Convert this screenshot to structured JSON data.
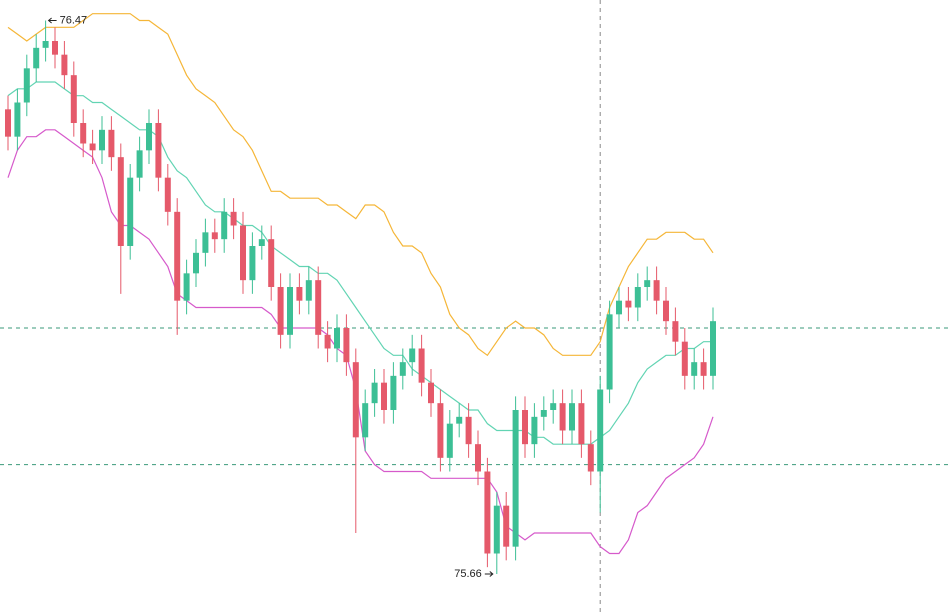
{
  "chart_data": {
    "type": "candlestick",
    "up_color": "#3cbf95",
    "down_color": "#e5596a",
    "ylim": [
      75.6,
      76.5
    ],
    "open": [
      76.34,
      76.3,
      76.35,
      76.4,
      76.43,
      76.44,
      76.42,
      76.39,
      76.32,
      76.29,
      76.28,
      76.31,
      76.27,
      76.14,
      76.24,
      76.28,
      76.32,
      76.24,
      76.19,
      76.06,
      76.1,
      76.13,
      76.16,
      76.15,
      76.19,
      76.17,
      76.09,
      76.14,
      76.15,
      76.08,
      76.01,
      76.08,
      76.06,
      76.09,
      76.01,
      75.99,
      76.02,
      75.97,
      75.86,
      75.91,
      75.94,
      75.9,
      75.95,
      75.97,
      75.99,
      75.94,
      75.91,
      75.83,
      75.88,
      75.89,
      75.85,
      75.81,
      75.69,
      75.76,
      75.7,
      75.9,
      75.85,
      75.89,
      75.9,
      75.91,
      75.87,
      75.91,
      75.85,
      75.81,
      75.93,
      76.04,
      76.06,
      76.05,
      76.08,
      76.09,
      76.06,
      76.03,
      76.0,
      75.95,
      75.97,
      75.95
    ],
    "high": [
      76.36,
      76.37,
      76.42,
      76.45,
      76.47,
      76.46,
      76.44,
      76.41,
      76.34,
      76.31,
      76.33,
      76.33,
      76.29,
      76.26,
      76.3,
      76.34,
      76.34,
      76.26,
      76.21,
      76.12,
      76.15,
      76.18,
      76.18,
      76.21,
      76.21,
      76.19,
      76.16,
      76.17,
      76.17,
      76.1,
      76.1,
      76.1,
      76.11,
      76.11,
      76.03,
      76.04,
      76.04,
      75.99,
      75.93,
      75.96,
      75.96,
      75.97,
      75.99,
      76.01,
      76.01,
      75.96,
      75.93,
      75.9,
      75.91,
      75.91,
      75.87,
      75.83,
      75.78,
      75.78,
      75.92,
      75.92,
      75.91,
      75.92,
      75.93,
      75.93,
      75.93,
      75.93,
      75.87,
      75.95,
      76.06,
      76.08,
      76.08,
      76.1,
      76.11,
      76.11,
      76.08,
      76.05,
      76.02,
      75.99,
      75.99,
      76.05
    ],
    "low": [
      76.28,
      76.28,
      76.33,
      76.38,
      76.41,
      76.4,
      76.37,
      76.3,
      76.27,
      76.26,
      76.26,
      76.25,
      76.07,
      76.12,
      76.22,
      76.26,
      76.22,
      76.17,
      76.01,
      76.04,
      76.08,
      76.11,
      76.13,
      76.13,
      76.15,
      76.07,
      76.07,
      76.12,
      76.06,
      75.99,
      75.99,
      76.04,
      76.04,
      75.99,
      75.97,
      75.97,
      75.95,
      75.72,
      75.84,
      75.89,
      75.88,
      75.88,
      75.93,
      75.95,
      75.92,
      75.89,
      75.81,
      75.81,
      75.86,
      75.83,
      75.79,
      75.67,
      75.66,
      75.68,
      75.68,
      75.83,
      75.83,
      75.87,
      75.88,
      75.85,
      75.85,
      75.83,
      75.79,
      75.75,
      75.91,
      76.02,
      76.03,
      76.03,
      76.06,
      76.04,
      76.01,
      75.98,
      75.93,
      75.93,
      75.93,
      75.93
    ],
    "close": [
      76.3,
      76.35,
      76.4,
      76.43,
      76.44,
      76.42,
      76.39,
      76.32,
      76.29,
      76.28,
      76.31,
      76.27,
      76.14,
      76.24,
      76.28,
      76.32,
      76.24,
      76.19,
      76.06,
      76.1,
      76.13,
      76.16,
      76.15,
      76.19,
      76.17,
      76.09,
      76.14,
      76.15,
      76.08,
      76.01,
      76.08,
      76.06,
      76.09,
      76.01,
      75.99,
      76.02,
      75.97,
      75.86,
      75.91,
      75.94,
      75.9,
      75.95,
      75.97,
      75.99,
      75.94,
      75.91,
      75.83,
      75.88,
      75.89,
      75.85,
      75.81,
      75.69,
      75.76,
      75.7,
      75.9,
      75.85,
      75.89,
      75.9,
      75.91,
      75.87,
      75.91,
      75.85,
      75.81,
      75.93,
      76.04,
      76.06,
      76.05,
      76.08,
      76.09,
      76.06,
      76.03,
      76.0,
      75.95,
      75.97,
      75.95,
      76.03
    ],
    "bands": [
      {
        "color": "#f5b638",
        "values": [
          76.46,
          76.45,
          76.44,
          76.45,
          76.46,
          76.46,
          76.46,
          76.46,
          76.47,
          76.48,
          76.48,
          76.48,
          76.48,
          76.48,
          76.47,
          76.47,
          76.46,
          76.45,
          76.42,
          76.39,
          76.37,
          76.36,
          76.35,
          76.33,
          76.31,
          76.3,
          76.28,
          76.25,
          76.22,
          76.22,
          76.21,
          76.21,
          76.21,
          76.21,
          76.2,
          76.2,
          76.19,
          76.18,
          76.2,
          76.2,
          76.19,
          76.16,
          76.14,
          76.14,
          76.13,
          76.1,
          76.08,
          76.04,
          76.02,
          76.01,
          75.99,
          75.98,
          76.0,
          76.02,
          76.03,
          76.02,
          76.02,
          76.01,
          75.99,
          75.98,
          75.98,
          75.98,
          75.98,
          76.0,
          76.05,
          76.08,
          76.11,
          76.13,
          76.15,
          76.15,
          76.16,
          76.16,
          76.16,
          76.15,
          76.15,
          76.13
        ]
      },
      {
        "color": "#62d4b3",
        "values": [
          76.36,
          76.37,
          76.37,
          76.38,
          76.38,
          76.38,
          76.37,
          76.36,
          76.36,
          76.35,
          76.35,
          76.34,
          76.33,
          76.32,
          76.31,
          76.31,
          76.3,
          76.27,
          76.25,
          76.24,
          76.22,
          76.2,
          76.19,
          76.19,
          76.18,
          76.17,
          76.17,
          76.16,
          76.14,
          76.13,
          76.12,
          76.11,
          76.11,
          76.1,
          76.1,
          76.09,
          76.07,
          76.05,
          76.03,
          76.01,
          75.99,
          75.98,
          75.98,
          75.96,
          75.95,
          75.94,
          75.93,
          75.92,
          75.91,
          75.9,
          75.9,
          75.88,
          75.87,
          75.87,
          75.87,
          75.87,
          75.86,
          75.86,
          75.85,
          75.85,
          75.85,
          75.85,
          75.85,
          75.86,
          75.87,
          75.89,
          75.91,
          75.94,
          75.96,
          75.97,
          75.98,
          75.98,
          75.99,
          75.99,
          76.0,
          76.0
        ]
      },
      {
        "color": "#d65acb",
        "values": [
          76.24,
          76.28,
          76.3,
          76.3,
          76.31,
          76.31,
          76.3,
          76.29,
          76.28,
          76.27,
          76.24,
          76.19,
          76.17,
          76.17,
          76.16,
          76.15,
          76.13,
          76.11,
          76.07,
          76.06,
          76.05,
          76.05,
          76.05,
          76.05,
          76.05,
          76.05,
          76.05,
          76.05,
          76.04,
          76.02,
          76.02,
          76.02,
          76.02,
          76.02,
          76.01,
          75.99,
          75.98,
          75.93,
          75.84,
          75.82,
          75.81,
          75.81,
          75.81,
          75.81,
          75.81,
          75.8,
          75.8,
          75.8,
          75.8,
          75.8,
          75.8,
          75.8,
          75.78,
          75.73,
          75.72,
          75.71,
          75.72,
          75.72,
          75.72,
          75.72,
          75.72,
          75.72,
          75.72,
          75.7,
          75.69,
          75.69,
          75.71,
          75.75,
          75.76,
          75.78,
          75.8,
          75.81,
          75.82,
          75.83,
          75.85,
          75.89
        ]
      }
    ],
    "reference_lines": [
      76.02,
      75.82
    ],
    "crosshair_index": 63
  }
}
